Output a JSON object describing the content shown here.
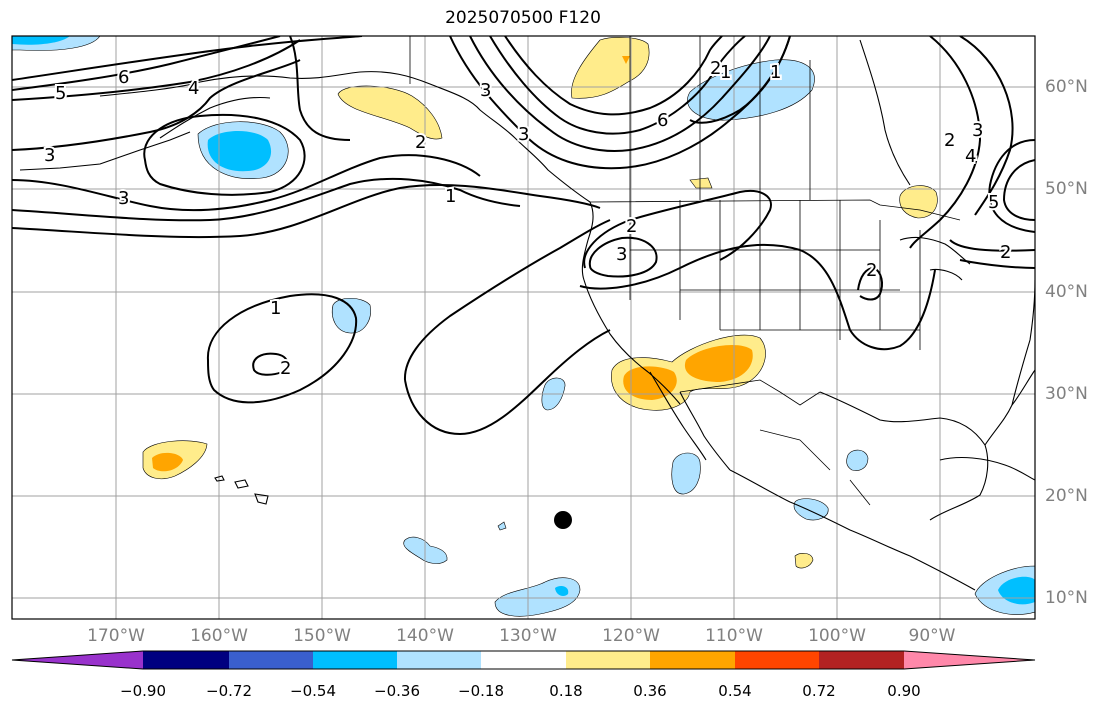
{
  "title": "2025070500 F120",
  "colors": {
    "frame": "#000000",
    "grid": "#a0a0a0",
    "coast": "#000000",
    "contour": "#000000",
    "marker": "#000000",
    "axis_label": "#808080"
  },
  "lon_labels": [
    "170°W",
    "160°W",
    "150°W",
    "140°W",
    "130°W",
    "120°W",
    "110°W",
    "100°W",
    "90°W"
  ],
  "lat_labels": [
    "60°N",
    "50°N",
    "40°N",
    "30°N",
    "20°N",
    "10°N"
  ],
  "colorbar": {
    "colors": [
      "#9932cc",
      "#000080",
      "#3a5fcd",
      "#00bfff",
      "#b0e2ff",
      "#ffffff",
      "#ffec8b",
      "#ffa500",
      "#ff4500",
      "#b22222",
      "#ff88aa"
    ],
    "tick_labels": [
      "−0.90",
      "−0.72",
      "−0.54",
      "−0.36",
      "−0.18",
      "0.18",
      "0.36",
      "0.54",
      "0.72",
      "0.90"
    ]
  },
  "contour_labels": [
    "5",
    "6",
    "4",
    "3",
    "3",
    "2",
    "1",
    "1",
    "2",
    "2",
    "3",
    "3",
    "6",
    "1",
    "2",
    "3",
    "4",
    "5",
    "2",
    "1",
    "3",
    "2",
    "2"
  ],
  "legend_icons": [
    "marker-dot-icon"
  ]
}
